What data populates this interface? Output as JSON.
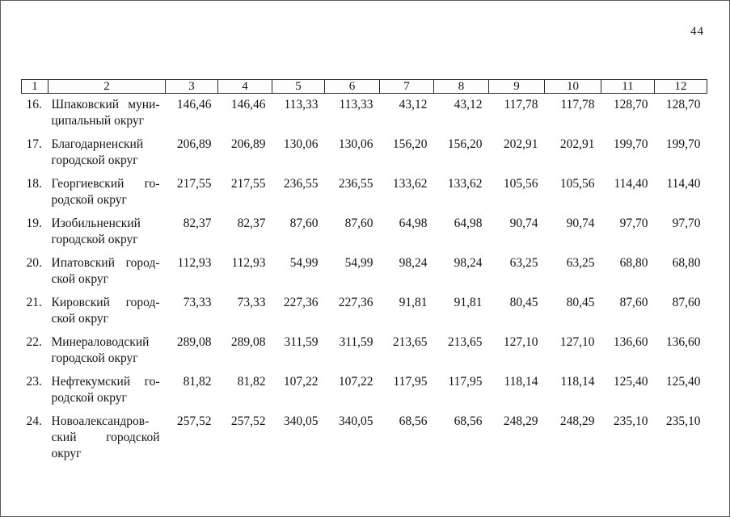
{
  "page": {
    "number": "44"
  },
  "table": {
    "header": [
      "1",
      "2",
      "3",
      "4",
      "5",
      "6",
      "7",
      "8",
      "9",
      "10",
      "11",
      "12"
    ],
    "rows": [
      {
        "num": "16.",
        "name_lines": [
          "Шпаковский муни-",
          "ципальный округ"
        ],
        "values": [
          "146,46",
          "146,46",
          "113,33",
          "113,33",
          "43,12",
          "43,12",
          "117,78",
          "117,78",
          "128,70",
          "128,70"
        ]
      },
      {
        "num": "17.",
        "name_lines": [
          "Благодарненский",
          "городской округ"
        ],
        "values": [
          "206,89",
          "206,89",
          "130,06",
          "130,06",
          "156,20",
          "156,20",
          "202,91",
          "202,91",
          "199,70",
          "199,70"
        ]
      },
      {
        "num": "18.",
        "name_lines": [
          "Георгиевский го-",
          "родской округ"
        ],
        "values": [
          "217,55",
          "217,55",
          "236,55",
          "236,55",
          "133,62",
          "133,62",
          "105,56",
          "105,56",
          "114,40",
          "114,40"
        ]
      },
      {
        "num": "19.",
        "name_lines": [
          "Изобильненский",
          "городской округ"
        ],
        "values": [
          "82,37",
          "82,37",
          "87,60",
          "87,60",
          "64,98",
          "64,98",
          "90,74",
          "90,74",
          "97,70",
          "97,70"
        ]
      },
      {
        "num": "20.",
        "name_lines": [
          "Ипатовский город-",
          "ской округ"
        ],
        "values": [
          "112,93",
          "112,93",
          "54,99",
          "54,99",
          "98,24",
          "98,24",
          "63,25",
          "63,25",
          "68,80",
          "68,80"
        ]
      },
      {
        "num": "21.",
        "name_lines": [
          "Кировский город-",
          "ской округ"
        ],
        "values": [
          "73,33",
          "73,33",
          "227,36",
          "227,36",
          "91,81",
          "91,81",
          "80,45",
          "80,45",
          "87,60",
          "87,60"
        ]
      },
      {
        "num": "22.",
        "name_lines": [
          "Минераловодский",
          "городской округ"
        ],
        "values": [
          "289,08",
          "289,08",
          "311,59",
          "311,59",
          "213,65",
          "213,65",
          "127,10",
          "127,10",
          "136,60",
          "136,60"
        ]
      },
      {
        "num": "23.",
        "name_lines": [
          "Нефтекумский го-",
          "родской округ"
        ],
        "values": [
          "81,82",
          "81,82",
          "107,22",
          "107,22",
          "117,95",
          "117,95",
          "118,14",
          "118,14",
          "125,40",
          "125,40"
        ]
      },
      {
        "num": "24.",
        "name_lines": [
          "Новоалександров-",
          "ский городской",
          "округ"
        ],
        "values": [
          "257,52",
          "257,52",
          "340,05",
          "340,05",
          "68,56",
          "68,56",
          "248,29",
          "248,29",
          "235,10",
          "235,10"
        ]
      }
    ]
  }
}
